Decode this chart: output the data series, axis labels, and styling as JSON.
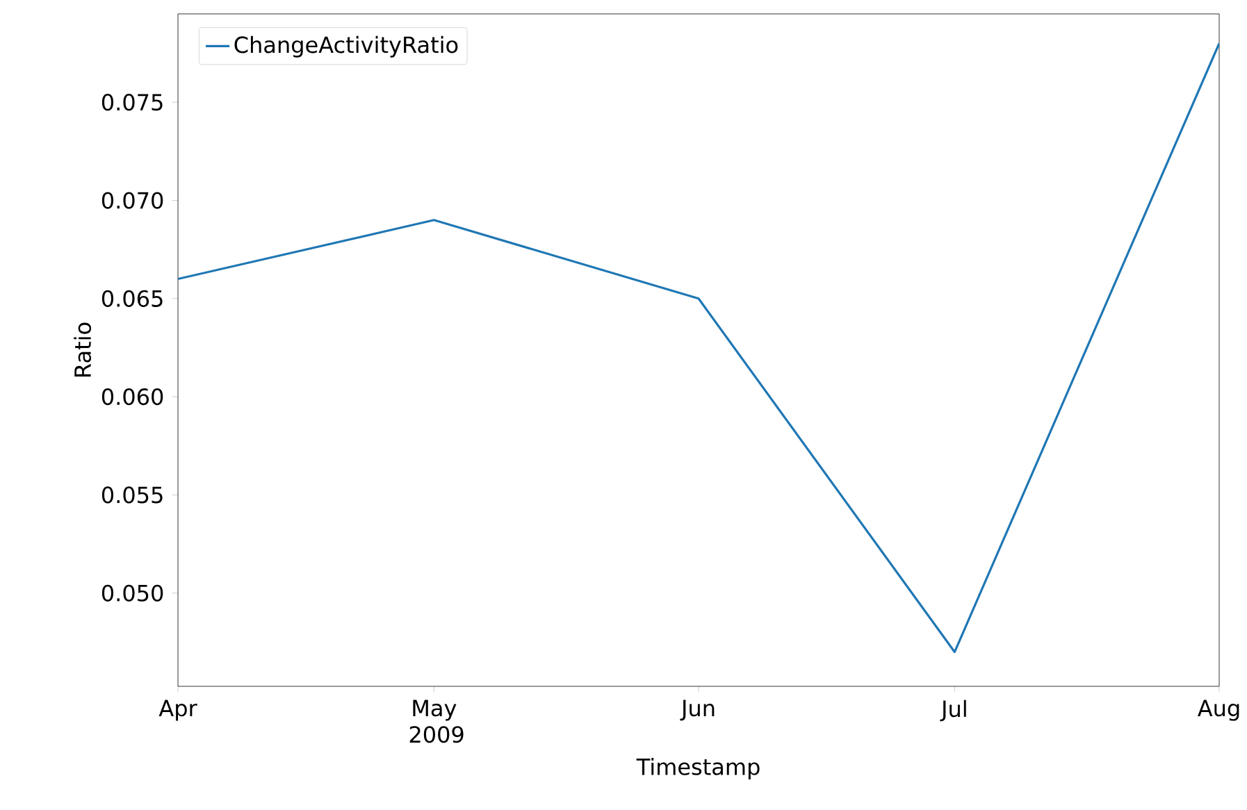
{
  "chart_data": {
    "type": "line",
    "xlabel": "Timestamp",
    "ylabel": "Ratio",
    "x": [
      "2009-04",
      "2009-05",
      "2009-06",
      "2009-07",
      "2009-08"
    ],
    "series": [
      {
        "name": "ChangeActivityRatio",
        "color": "#1f77b4",
        "values": [
          0.066,
          0.069,
          0.065,
          0.047,
          0.078
        ]
      }
    ],
    "xlim": [
      "2009-04",
      "2009-08"
    ],
    "xticks": [
      {
        "value": "2009-04",
        "label": "Apr"
      },
      {
        "value": "2009-05",
        "label": "May 2009"
      },
      {
        "value": "2009-06",
        "label": "Jun"
      },
      {
        "value": "2009-07",
        "label": "Jul"
      },
      {
        "value": "2009-08",
        "label": "Aug"
      }
    ],
    "ylim": [
      0.04525,
      0.0795
    ],
    "yticks": [
      {
        "value": 0.05,
        "label": "0.050"
      },
      0.055,
      {
        "value": 0.06,
        "label": "0.060"
      },
      0.065,
      {
        "value": 0.07,
        "label": "0.070"
      },
      0.075
    ],
    "legend": "top left",
    "grid": false,
    "marker": "none",
    "line_style": "solid"
  }
}
